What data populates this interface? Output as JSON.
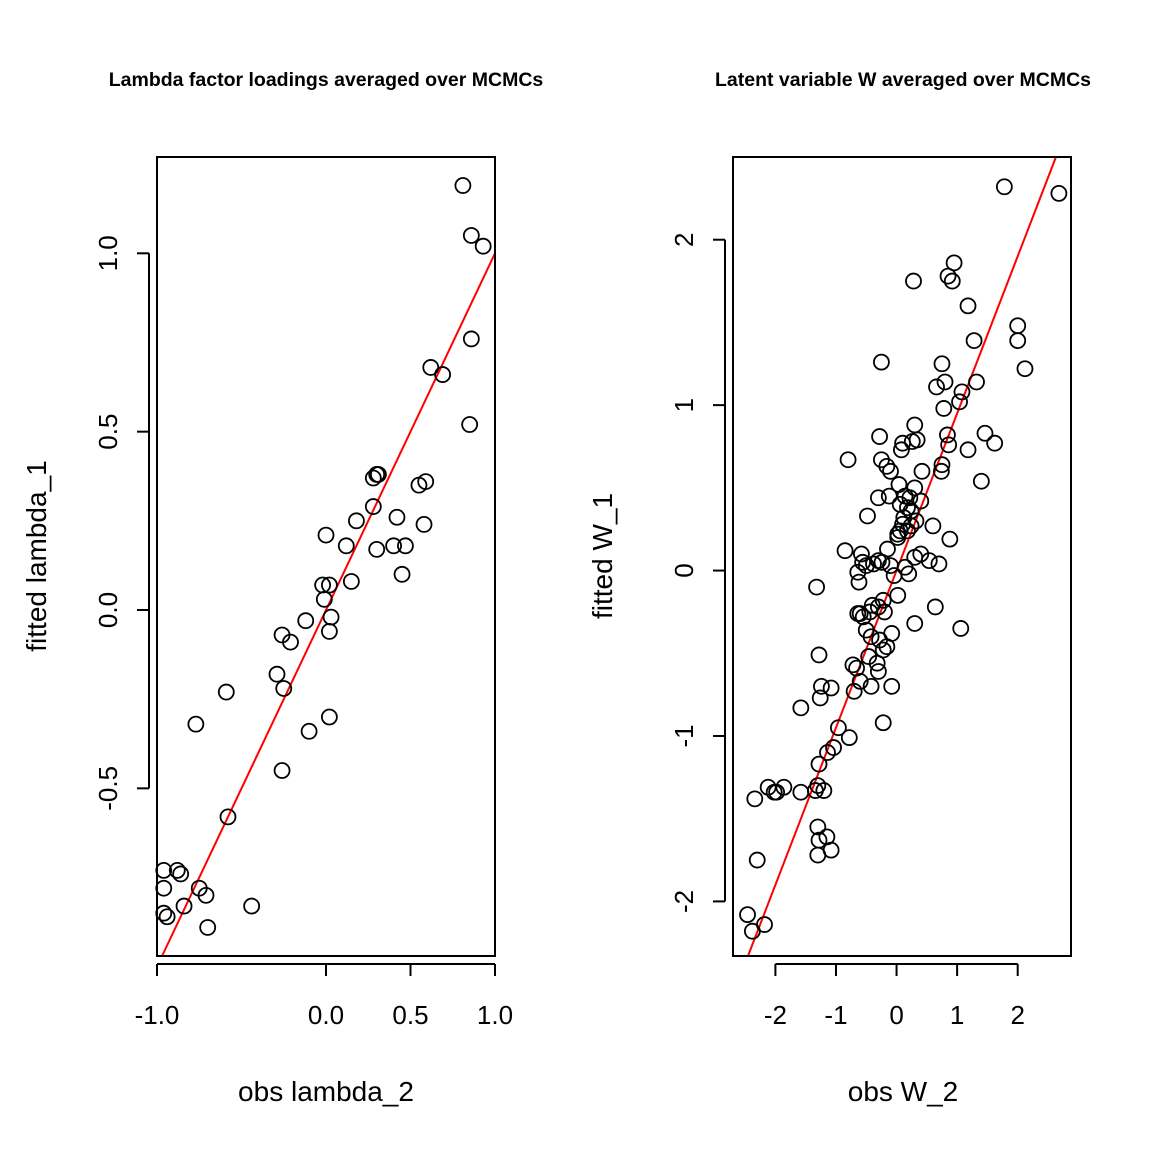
{
  "chart_data": [
    {
      "type": "scatter",
      "title": "Lambda factor loadings averaged over MCMCs",
      "xlabel": "obs lambda_2",
      "ylabel": "fitted lambda_1",
      "xlim": [
        -1.0,
        1.0
      ],
      "ylim": [
        -0.97,
        1.27
      ],
      "xticks": [
        -1.0,
        0.0,
        0.5,
        1.0
      ],
      "xtick_labels": [
        "-1.0",
        "0.0",
        "0.5",
        "1.0"
      ],
      "yticks": [
        -0.5,
        0.0,
        0.5,
        1.0
      ],
      "ytick_labels": [
        "-0.5",
        "0.0",
        "0.5",
        "1.0"
      ],
      "fit_line": {
        "color": "#ff0000",
        "intercept": 0.0,
        "slope": 1.0
      },
      "point_color": "#000000",
      "x": [
        0.81,
        0.86,
        0.93,
        0.86,
        0.62,
        0.69,
        0.85,
        0.3,
        0.31,
        0.28,
        0.55,
        0.59,
        0.28,
        0.18,
        0.42,
        0.58,
        0.0,
        0.12,
        0.3,
        0.4,
        0.47,
        0.45,
        0.15,
        -0.02,
        0.02,
        -0.01,
        0.03,
        0.02,
        -0.26,
        -0.21,
        -0.12,
        -0.29,
        -0.25,
        -0.59,
        -0.77,
        -0.26,
        0.02,
        -0.1,
        -0.58,
        -0.96,
        -0.88,
        -0.86,
        -0.96,
        -0.75,
        -0.71,
        -0.84,
        -0.96,
        -0.94,
        -0.7,
        -0.44
      ],
      "y": [
        1.19,
        1.05,
        1.02,
        0.76,
        0.68,
        0.66,
        0.52,
        0.38,
        0.38,
        0.37,
        0.35,
        0.36,
        0.29,
        0.25,
        0.26,
        0.24,
        0.21,
        0.18,
        0.17,
        0.18,
        0.18,
        0.1,
        0.08,
        0.07,
        0.07,
        0.03,
        -0.02,
        -0.06,
        -0.07,
        -0.09,
        -0.03,
        -0.18,
        -0.22,
        -0.23,
        -0.32,
        -0.45,
        -0.3,
        -0.34,
        -0.58,
        -0.73,
        -0.73,
        -0.74,
        -0.78,
        -0.78,
        -0.8,
        -0.83,
        -0.85,
        -0.86,
        -0.89,
        -0.83
      ]
    },
    {
      "type": "scatter",
      "title": "Latent variable W averaged over MCMCs",
      "xlabel": "obs W_2",
      "ylabel": "fitted W_1",
      "xlim": [
        -2.7,
        2.88
      ],
      "ylim": [
        -2.33,
        2.5
      ],
      "xticks": [
        -2,
        -1,
        0,
        1,
        2
      ],
      "xtick_labels": [
        "-2",
        "-1",
        "0",
        "1",
        "2"
      ],
      "yticks": [
        -2,
        -1,
        0,
        1,
        2
      ],
      "ytick_labels": [
        "-2",
        "-1",
        "0",
        "1",
        "2"
      ],
      "fit_line": {
        "color": "#ff0000",
        "intercept": 0.0,
        "slope": 0.95
      },
      "point_color": "#000000",
      "x": [
        1.78,
        2.68,
        0.28,
        0.85,
        0.95,
        0.92,
        1.18,
        2.0,
        2.0,
        1.28,
        2.12,
        -0.25,
        0.75,
        0.66,
        0.8,
        1.08,
        1.32,
        1.04,
        0.78,
        0.3,
        0.84,
        1.46,
        1.18,
        1.62,
        0.1,
        -0.28,
        0.08,
        0.74,
        1.4,
        -0.8,
        -0.25,
        -0.1,
        -0.16,
        0.42,
        0.75,
        0.86,
        0.26,
        0.34,
        0.4,
        0.3,
        0.04,
        0.22,
        0.14,
        0.06,
        -0.3,
        -0.12,
        -0.48,
        0.24,
        0.18,
        0.12,
        0.1,
        0.06,
        0.02,
        0.6,
        0.32,
        0.24,
        0.18,
        0.02,
        0.88,
        -0.85,
        -0.15,
        -0.58,
        0.4,
        0.3,
        0.54,
        0.7,
        -0.56,
        -0.3,
        -0.24,
        -0.38,
        -0.5,
        -0.1,
        0.14,
        -0.64,
        0.2,
        -0.04,
        -1.32,
        -0.62,
        0.02,
        -0.22,
        0.64,
        -0.3,
        -0.64,
        0.3,
        -0.6,
        -0.55,
        -0.4,
        -0.44,
        -0.2,
        -0.08,
        -0.5,
        -0.28,
        -0.16,
        -0.42,
        -0.72,
        -0.66,
        -1.28,
        -0.46,
        -0.32,
        -0.3,
        -0.22,
        -0.7,
        -0.6,
        -0.08,
        -1.24,
        -0.42,
        -1.26,
        -1.08,
        -1.58,
        -0.22,
        -0.96,
        -0.78,
        -1.04,
        -1.14,
        -1.28,
        -1.58,
        -1.34,
        -1.98,
        -2.02,
        -2.12,
        -1.86,
        -1.3,
        -1.2,
        -2.34,
        -1.3,
        -1.28,
        -1.15,
        -1.08,
        -1.3,
        -2.3,
        -2.46,
        -2.18,
        -2.38,
        1.06
      ],
      "y": [
        2.32,
        2.28,
        1.75,
        1.78,
        1.86,
        1.75,
        1.6,
        1.48,
        1.39,
        1.39,
        1.22,
        1.26,
        1.25,
        1.11,
        1.14,
        1.08,
        1.14,
        1.02,
        0.98,
        0.88,
        0.82,
        0.83,
        0.73,
        0.77,
        0.77,
        0.81,
        0.73,
        0.6,
        0.54,
        0.67,
        0.67,
        0.6,
        0.63,
        0.6,
        0.64,
        0.76,
        0.78,
        0.79,
        0.42,
        0.5,
        0.52,
        0.44,
        0.45,
        0.4,
        0.44,
        0.45,
        0.33,
        0.36,
        0.38,
        0.32,
        0.28,
        0.24,
        0.22,
        0.27,
        0.3,
        0.27,
        0.24,
        0.2,
        0.19,
        0.12,
        0.13,
        0.1,
        0.1,
        0.08,
        0.06,
        0.04,
        0.05,
        0.06,
        0.05,
        0.04,
        0.03,
        0.03,
        0.02,
        -0.01,
        -0.02,
        -0.03,
        -0.1,
        -0.07,
        -0.15,
        -0.18,
        -0.22,
        -0.22,
        -0.26,
        -0.32,
        -0.26,
        -0.28,
        -0.21,
        -0.25,
        -0.25,
        -0.38,
        -0.36,
        -0.42,
        -0.46,
        -0.4,
        -0.57,
        -0.59,
        -0.51,
        -0.52,
        -0.56,
        -0.61,
        -0.48,
        -0.73,
        -0.67,
        -0.7,
        -0.7,
        -0.7,
        -0.77,
        -0.71,
        -0.83,
        -0.92,
        -0.95,
        -1.01,
        -1.07,
        -1.1,
        -1.17,
        -1.34,
        -1.33,
        -1.34,
        -1.34,
        -1.31,
        -1.31,
        -1.3,
        -1.33,
        -1.38,
        -1.55,
        -1.63,
        -1.61,
        -1.69,
        -1.72,
        -1.75,
        -2.08,
        -2.14,
        -2.18,
        -0.35
      ]
    }
  ]
}
